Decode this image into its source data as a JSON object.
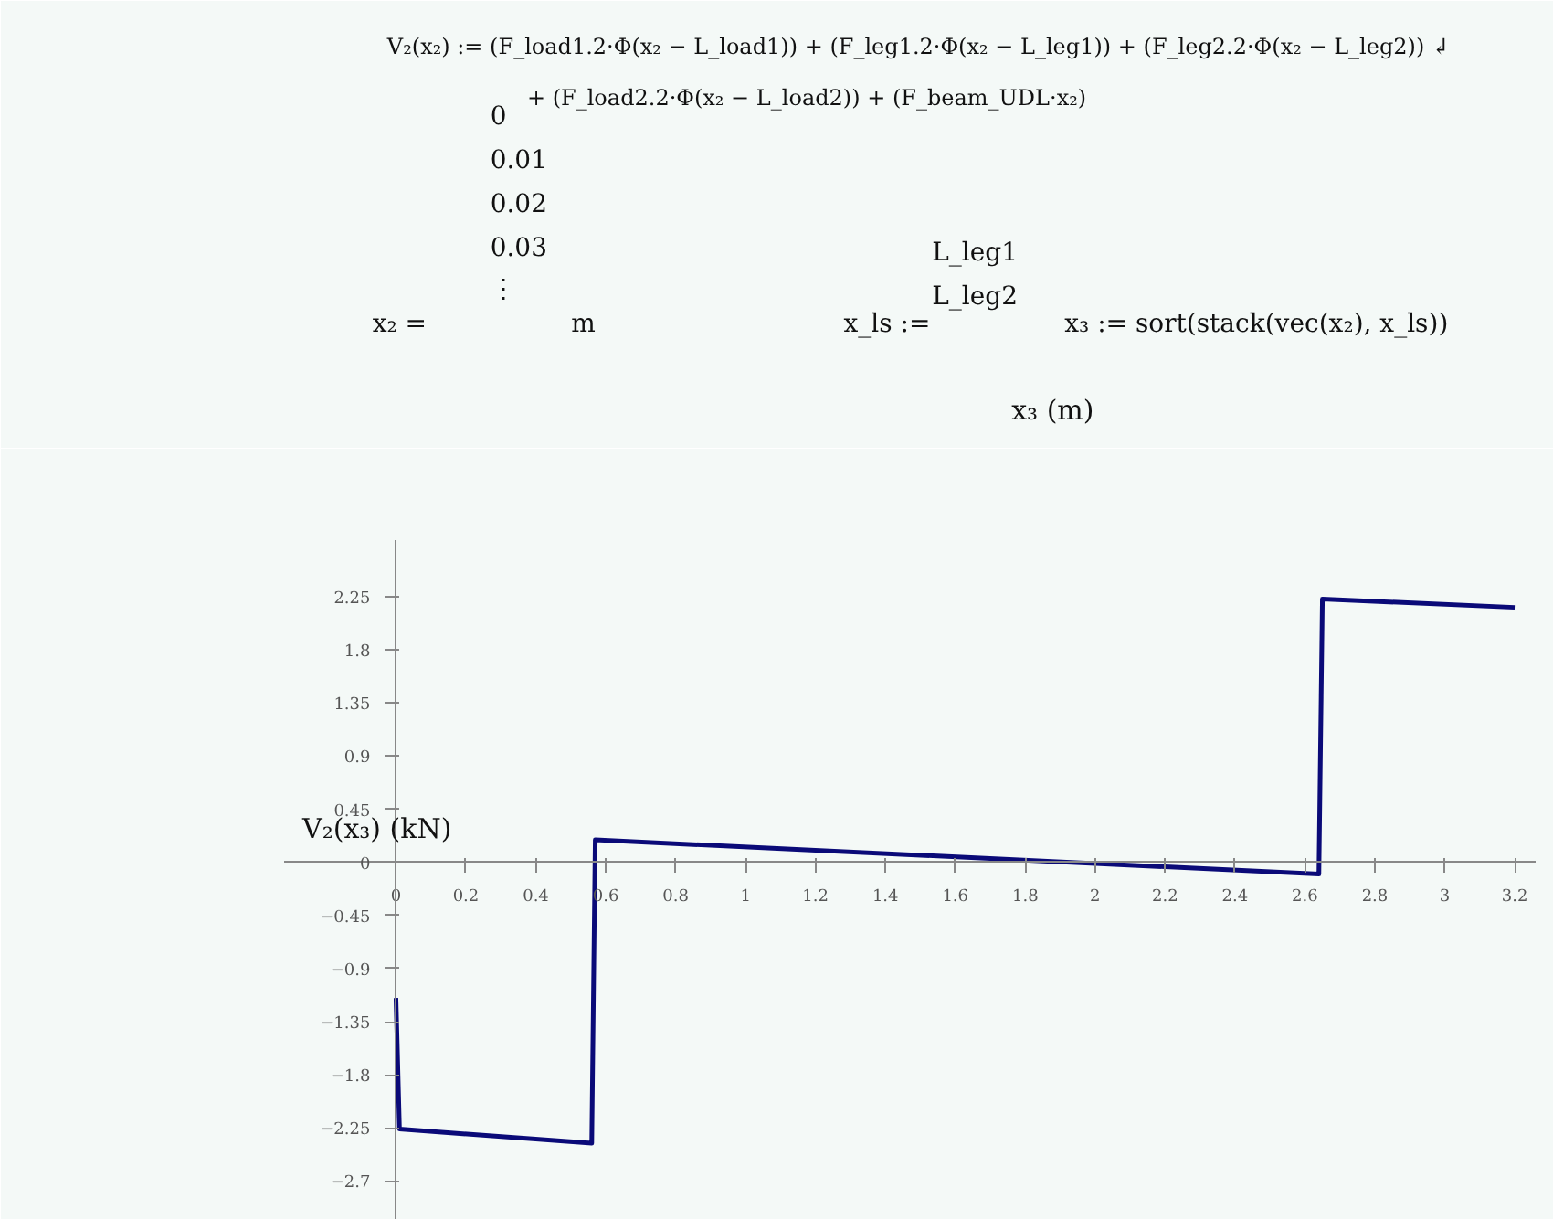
{
  "chart_data": {
    "type": "line",
    "xlabel": "x₃ (m)",
    "ylabel": "V₂(x₃) (kN)",
    "annotations": [
      "V₂(x₂) := (F_load1.2·Φ(x₂ − L_load1)) + (F_leg1.2·Φ(x₂ − L_leg1)) + (F_leg2.2·Φ(x₂ − L_leg2)) ↲",
      "+ (F_load2.2·Φ(x₂ − L_load2)) + (F_beam_UDL·x₂)",
      "x₂ =",
      "0\n0.01\n0.02\n0.03\n⋮",
      "m",
      "x_ls := ",
      "L_leg1\nL_leg2",
      "x₃ := sort(stack(vec(x₂), x_ls))"
    ],
    "series": [
      {
        "color": "#0a0a78",
        "x": [
          0,
          0.01,
          0.56,
          0.57,
          2.64,
          2.65,
          3.2
        ],
        "values": [
          -1.15,
          -2.26,
          -2.38,
          0.19,
          -0.1,
          2.23,
          2.16
        ]
      }
    ],
    "xlim": [
      -0.32,
      3.26
    ],
    "ylim": [
      -3.03,
      2.73
    ],
    "xticks": [
      0,
      0.2,
      0.4,
      0.6,
      0.8,
      1,
      1.2,
      1.4,
      1.6,
      1.8,
      2,
      2.2,
      2.4,
      2.6,
      2.8,
      3,
      3.2
    ],
    "yticks": [
      {
        "value": -2.7,
        "label": "−2.7"
      },
      {
        "value": -2.25,
        "label": "−2.25"
      },
      {
        "value": -1.8,
        "label": "−1.8"
      },
      {
        "value": -1.35,
        "label": "−1.35"
      },
      {
        "value": -0.9,
        "label": "−0.9"
      },
      {
        "value": -0.45,
        "label": "−0.45"
      },
      0,
      0.45,
      0.9,
      1.35,
      1.8,
      2.25
    ],
    "grid": false,
    "marker": "none",
    "line_style": "solid"
  }
}
